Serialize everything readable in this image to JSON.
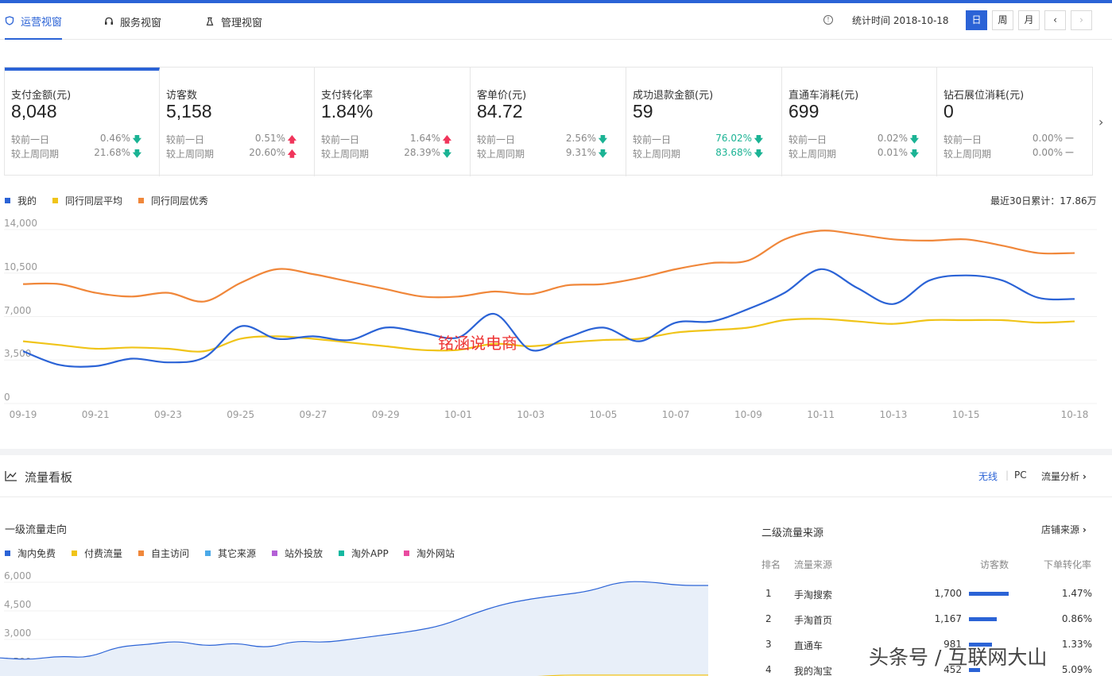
{
  "tabs": [
    {
      "label": "运营视窗",
      "icon": "shield-icon"
    },
    {
      "label": "服务视窗",
      "icon": "headset-icon"
    },
    {
      "label": "管理视窗",
      "icon": "bag-icon"
    }
  ],
  "header": {
    "stat_time": "统计时间 2018-10-18",
    "periods": [
      "日",
      "周",
      "月"
    ],
    "prev_label": "‹",
    "next_label": "›"
  },
  "metrics": [
    {
      "title": "支付金额(元)",
      "value": "8,048",
      "r1_label": "较前一日",
      "r1_pct": "0.46%",
      "r1_dir": "down",
      "r2_label": "较上周同期",
      "r2_pct": "21.68%",
      "r2_dir": "down"
    },
    {
      "title": "访客数",
      "value": "5,158",
      "r1_label": "较前一日",
      "r1_pct": "0.51%",
      "r1_dir": "up",
      "r2_label": "较上周同期",
      "r2_pct": "20.60%",
      "r2_dir": "up"
    },
    {
      "title": "支付转化率",
      "value": "1.84%",
      "r1_label": "较前一日",
      "r1_pct": "1.64%",
      "r1_dir": "up",
      "r2_label": "较上周同期",
      "r2_pct": "28.39%",
      "r2_dir": "down"
    },
    {
      "title": "客单价(元)",
      "value": "84.72",
      "r1_label": "较前一日",
      "r1_pct": "2.56%",
      "r1_dir": "down",
      "r2_label": "较上周同期",
      "r2_pct": "9.31%",
      "r2_dir": "down"
    },
    {
      "title": "成功退款金额(元)",
      "value": "59",
      "r1_label": "较前一日",
      "r1_pct": "76.02%",
      "r1_dir": "down",
      "r2_label": "较上周同期",
      "r2_pct": "83.68%",
      "r2_dir": "down"
    },
    {
      "title": "直通车消耗(元)",
      "value": "699",
      "r1_label": "较前一日",
      "r1_pct": "0.02%",
      "r1_dir": "down",
      "r2_label": "较上周同期",
      "r2_pct": "0.01%",
      "r2_dir": "down"
    },
    {
      "title": "钻石展位消耗(元)",
      "value": "0",
      "r1_label": "较前一日",
      "r1_pct": "0.00%",
      "r1_dir": "flat",
      "r2_label": "较上周同期",
      "r2_pct": "0.00%",
      "r2_dir": "flat"
    }
  ],
  "arrows": {
    "up": "🡅",
    "down": "🡇",
    "flat": "—"
  },
  "metrics_next": "›",
  "chart1_summary": "最近30日累计：17.86万",
  "watermark_red": "铭涵说电商",
  "watermark_bottom": "头条号 / 互联网大山",
  "chart_data": [
    {
      "type": "line",
      "x": [
        "09-19",
        "09-20",
        "09-21",
        "09-22",
        "09-23",
        "09-24",
        "09-25",
        "09-26",
        "09-27",
        "09-28",
        "09-29",
        "09-30",
        "10-01",
        "10-02",
        "10-03",
        "10-04",
        "10-05",
        "10-06",
        "10-07",
        "10-08",
        "10-09",
        "10-10",
        "10-11",
        "10-12",
        "10-13",
        "10-14",
        "10-15",
        "10-16",
        "10-17",
        "10-18"
      ],
      "xticks": [
        "09-19",
        "09-21",
        "09-23",
        "09-25",
        "09-27",
        "09-29",
        "10-01",
        "10-03",
        "10-05",
        "10-07",
        "10-09",
        "10-11",
        "10-13",
        "10-15",
        "10-18"
      ],
      "yticks": [
        "0",
        "3,500",
        "7,000",
        "10,500",
        "14,000"
      ],
      "ylim": [
        0,
        14000
      ],
      "legend_position": "top-left",
      "series": [
        {
          "name": "我的",
          "color": "#2b63d6",
          "values": [
            3700,
            2600,
            2500,
            3100,
            2800,
            3200,
            5700,
            4700,
            4900,
            4600,
            5600,
            5200,
            4800,
            6700,
            3800,
            4800,
            5600,
            4500,
            6000,
            6100,
            7100,
            8400,
            10300,
            8800,
            7500,
            9400,
            9800,
            9400,
            8000,
            7900
          ]
        },
        {
          "name": "同行同层平均",
          "color": "#f0c419",
          "values": [
            4500,
            4200,
            3900,
            4000,
            3900,
            3700,
            4700,
            4900,
            4700,
            4400,
            4100,
            3800,
            3800,
            4300,
            4100,
            4400,
            4600,
            4700,
            5200,
            5400,
            5600,
            6200,
            6300,
            6100,
            5900,
            6200,
            6200,
            6200,
            6000,
            6100
          ]
        },
        {
          "name": "同行同层优秀",
          "color": "#f0873a",
          "values": [
            9100,
            9100,
            8400,
            8100,
            8400,
            7700,
            9200,
            10300,
            9900,
            9300,
            8700,
            8100,
            8100,
            8500,
            8300,
            9000,
            9100,
            9600,
            10300,
            10800,
            11000,
            12700,
            13400,
            13100,
            12700,
            12600,
            12700,
            12200,
            11600,
            11600
          ]
        }
      ]
    },
    {
      "type": "area",
      "title": "一级流量走向",
      "yticks": [
        "1,500",
        "3,000",
        "4,500",
        "6,000"
      ],
      "ylim": [
        0,
        6000
      ],
      "legend_position": "top-left",
      "legend": [
        {
          "name": "淘内免费",
          "color": "#2b63d6"
        },
        {
          "name": "付费流量",
          "color": "#f0c419"
        },
        {
          "name": "自主访问",
          "color": "#f0873a"
        },
        {
          "name": "其它来源",
          "color": "#4ba9e8"
        },
        {
          "name": "站外投放",
          "color": "#b35fd6"
        },
        {
          "name": "淘外APP",
          "color": "#14b8a0"
        },
        {
          "name": "淘外网站",
          "color": "#ea4ba0"
        }
      ],
      "series": [
        {
          "name": "淘内免费",
          "color": "#2b63d6",
          "values": [
            1700,
            1600,
            1800,
            1700,
            2300,
            2400,
            2600,
            2300,
            2500,
            2200,
            2600,
            2500,
            2700,
            2900,
            3100,
            3400,
            4000,
            4500,
            4800,
            5000,
            5200,
            5700,
            5700,
            5500,
            5500
          ]
        },
        {
          "name": "付费流量",
          "color": "#f0c419",
          "values": [
            200,
            200,
            200,
            200,
            200,
            200,
            300,
            300,
            300,
            300,
            400,
            400,
            500,
            500,
            600,
            600,
            700,
            700,
            700,
            800,
            800,
            800,
            800,
            800,
            800
          ]
        }
      ]
    }
  ],
  "flow": {
    "title": "流量看板",
    "tabs": [
      "无线",
      "PC"
    ],
    "analysis_label": "流量分析",
    "second_title": "二级流量来源",
    "store_source_label": "店铺来源",
    "columns": [
      "排名",
      "流量来源",
      "访客数",
      "下单转化率"
    ],
    "rows": [
      {
        "rank": "1",
        "source": "手淘搜索",
        "visitors": "1,700",
        "visitor_share": 1.0,
        "rate": "1.47%"
      },
      {
        "rank": "2",
        "source": "手淘首页",
        "visitors": "1,167",
        "visitor_share": 0.69,
        "rate": "0.86%"
      },
      {
        "rank": "3",
        "source": "直通车",
        "visitors": "981",
        "visitor_share": 0.58,
        "rate": "1.33%"
      },
      {
        "rank": "4",
        "source": "我的淘宝",
        "visitors": "452",
        "visitor_share": 0.27,
        "rate": "5.09%"
      }
    ]
  }
}
